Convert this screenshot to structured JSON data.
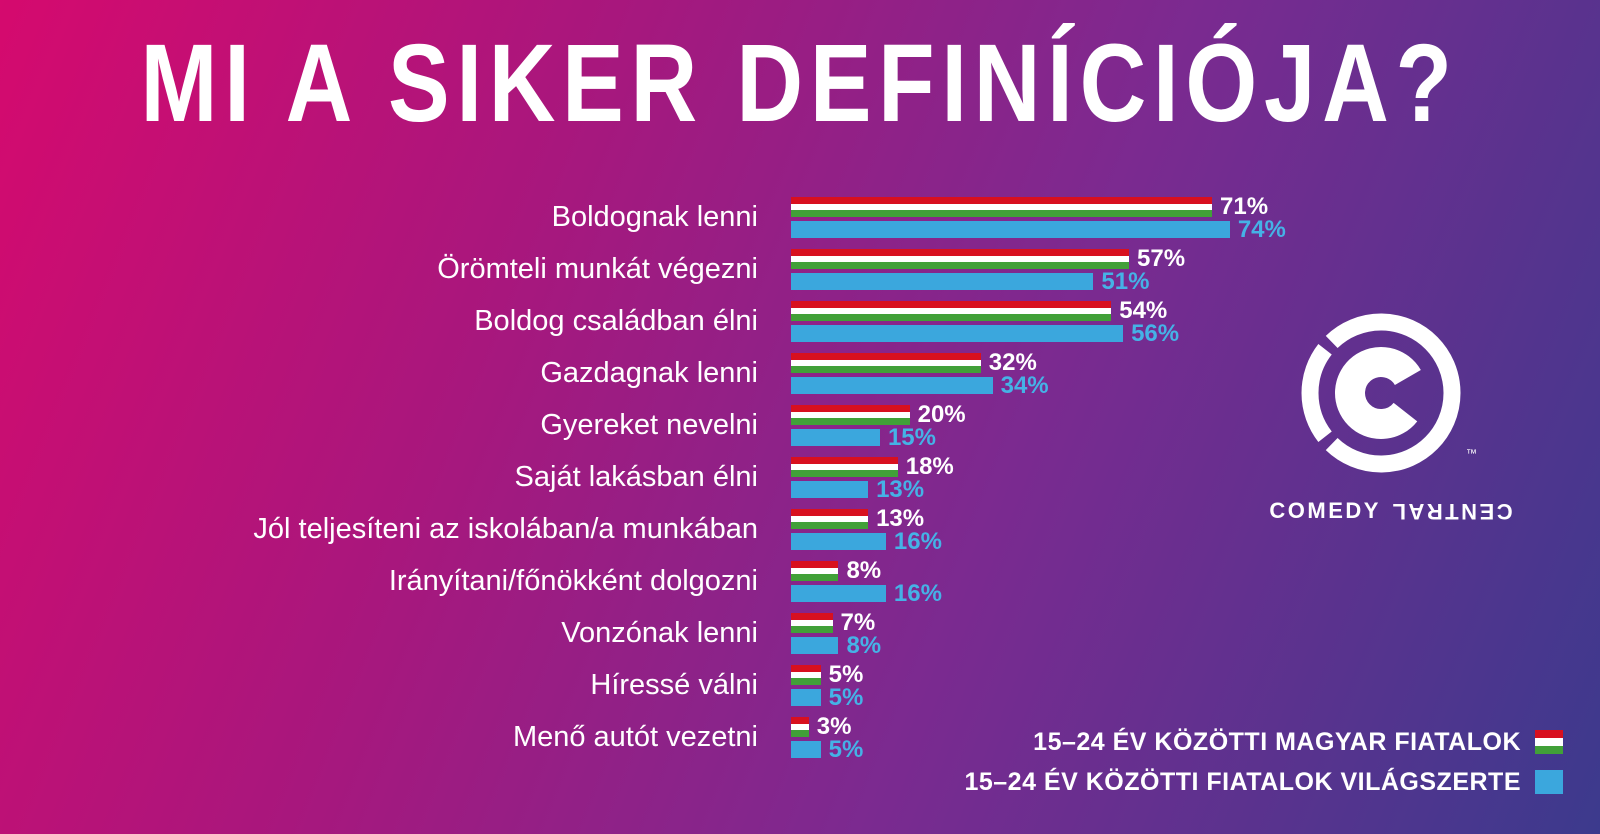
{
  "title": "MI A SIKER DEFINÍCIÓJA?",
  "chart_data": {
    "type": "bar",
    "orientation": "horizontal",
    "title": "MI A SIKER DEFINÍCIÓJA?",
    "categories": [
      "Boldognak lenni",
      "Örömteli munkát végezni",
      "Boldog családban élni",
      "Gazdagnak lenni",
      "Gyereket nevelni",
      "Saját lakásban élni",
      "Jól teljesíteni az iskolában/a munkában",
      "Irányítani/főnökként dolgozni",
      "Vonzónak lenni",
      "Híressé válni",
      "Menő autót vezetni"
    ],
    "series": [
      {
        "name": "15–24 ÉV KÖZÖTTI MAGYAR FIATALOK",
        "style": "hungarian-flag-stripes",
        "values": [
          71,
          57,
          54,
          32,
          20,
          18,
          13,
          8,
          7,
          5,
          3
        ]
      },
      {
        "name": "15–24 ÉV KÖZÖTTI FIATALOK VILÁGSZERTE",
        "style": "solid-blue",
        "values": [
          74,
          51,
          56,
          34,
          15,
          13,
          16,
          16,
          8,
          5,
          5
        ]
      }
    ],
    "value_suffix": "%",
    "xlim": [
      0,
      100
    ],
    "grid": false,
    "legend_position": "bottom-right"
  },
  "legend": {
    "items": [
      {
        "label": "15–24 ÉV KÖZÖTTI MAGYAR FIATALOK",
        "swatch": "hungarian-flag"
      },
      {
        "label": "15–24 ÉV KÖZÖTTI FIATALOK VILÁGSZERTE",
        "swatch": "blue"
      }
    ]
  },
  "logo": {
    "icon": "comedy-central-c-icon",
    "wordmark_left": "COMEDY",
    "wordmark_right": "CENTRAL",
    "trademark": "™"
  },
  "colors": {
    "background_start": "#d50a6e",
    "background_mid": "#7b2a90",
    "background_end": "#3c3a8d",
    "flag_red": "#d8101f",
    "flag_white": "#ffffff",
    "flag_green": "#41a038",
    "bar_blue": "#3ba7dd",
    "value_blue_text": "#45b2e6",
    "text": "#ffffff"
  }
}
